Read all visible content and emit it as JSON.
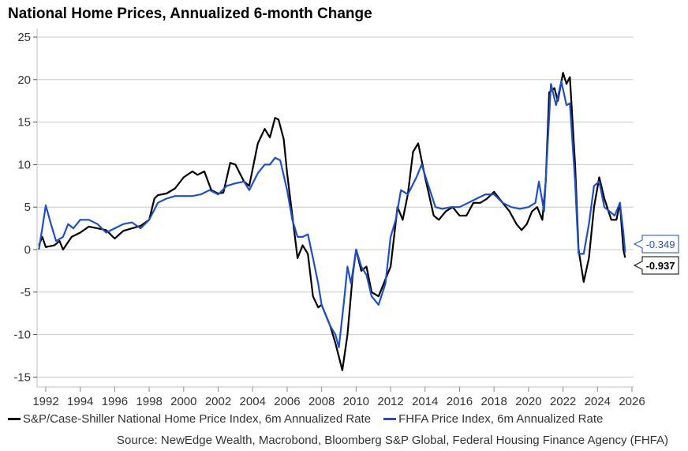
{
  "chart_data": {
    "type": "line",
    "title": "National Home Prices, Annualized 6-month Change",
    "xlabel": "",
    "ylabel": "",
    "xlim": [
      1991.6,
      2026.0
    ],
    "ylim": [
      -15,
      25
    ],
    "yticks": [
      25,
      20,
      15,
      10,
      5,
      0,
      -5,
      -10,
      -15
    ],
    "xticks": [
      1992,
      1994,
      1996,
      1998,
      2000,
      2002,
      2004,
      2006,
      2008,
      2010,
      2012,
      2014,
      2016,
      2018,
      2020,
      2022,
      2024,
      2026
    ],
    "grid": true,
    "legend_position": "bottom",
    "series": [
      {
        "name": "S&P/Case-Shiller National Home Price Index, 6m Annualized Rate",
        "color": "#000000",
        "last_value_label": "-0.937",
        "points": [
          [
            1991.6,
            0.5
          ],
          [
            1991.8,
            1.5
          ],
          [
            1992.0,
            0.3
          ],
          [
            1992.5,
            0.5
          ],
          [
            1992.8,
            1.0
          ],
          [
            1993.0,
            0.0
          ],
          [
            1993.5,
            1.5
          ],
          [
            1994.0,
            2.0
          ],
          [
            1994.5,
            2.7
          ],
          [
            1995.0,
            2.5
          ],
          [
            1995.5,
            2.3
          ],
          [
            1996.0,
            1.3
          ],
          [
            1996.5,
            2.2
          ],
          [
            1997.0,
            2.5
          ],
          [
            1997.5,
            2.8
          ],
          [
            1998.0,
            3.5
          ],
          [
            1998.3,
            6.0
          ],
          [
            1998.5,
            6.4
          ],
          [
            1999.0,
            6.6
          ],
          [
            1999.5,
            7.2
          ],
          [
            2000.0,
            8.5
          ],
          [
            2000.5,
            9.2
          ],
          [
            2000.8,
            8.8
          ],
          [
            2001.2,
            9.2
          ],
          [
            2001.6,
            7.0
          ],
          [
            2002.0,
            6.6
          ],
          [
            2002.3,
            6.7
          ],
          [
            2002.7,
            10.2
          ],
          [
            2003.0,
            10.0
          ],
          [
            2003.5,
            8.0
          ],
          [
            2003.8,
            7.5
          ],
          [
            2004.3,
            12.5
          ],
          [
            2004.7,
            14.2
          ],
          [
            2005.0,
            13.2
          ],
          [
            2005.3,
            15.5
          ],
          [
            2005.5,
            15.3
          ],
          [
            2005.8,
            13.0
          ],
          [
            2006.0,
            9.0
          ],
          [
            2006.3,
            4.0
          ],
          [
            2006.6,
            -1.0
          ],
          [
            2006.9,
            0.5
          ],
          [
            2007.2,
            -0.5
          ],
          [
            2007.5,
            -5.5
          ],
          [
            2007.8,
            -6.8
          ],
          [
            2008.0,
            -6.5
          ],
          [
            2008.5,
            -9.0
          ],
          [
            2008.8,
            -11.0
          ],
          [
            2009.2,
            -14.2
          ],
          [
            2009.5,
            -10.0
          ],
          [
            2009.8,
            -3.0
          ],
          [
            2010.0,
            0.0
          ],
          [
            2010.3,
            -2.5
          ],
          [
            2010.6,
            -2.0
          ],
          [
            2010.9,
            -5.0
          ],
          [
            2011.3,
            -5.5
          ],
          [
            2011.7,
            -3.5
          ],
          [
            2012.0,
            -2.0
          ],
          [
            2012.4,
            5.0
          ],
          [
            2012.7,
            3.5
          ],
          [
            2013.0,
            6.5
          ],
          [
            2013.3,
            11.5
          ],
          [
            2013.6,
            12.5
          ],
          [
            2014.0,
            8.5
          ],
          [
            2014.5,
            4.0
          ],
          [
            2014.8,
            3.5
          ],
          [
            2015.2,
            4.5
          ],
          [
            2015.6,
            5.0
          ],
          [
            2016.0,
            4.0
          ],
          [
            2016.4,
            4.0
          ],
          [
            2016.8,
            5.5
          ],
          [
            2017.2,
            5.5
          ],
          [
            2017.6,
            6.0
          ],
          [
            2018.0,
            6.8
          ],
          [
            2018.5,
            5.5
          ],
          [
            2018.9,
            4.5
          ],
          [
            2019.3,
            3.0
          ],
          [
            2019.6,
            2.3
          ],
          [
            2019.9,
            3.0
          ],
          [
            2020.2,
            4.5
          ],
          [
            2020.5,
            5.0
          ],
          [
            2020.8,
            3.5
          ],
          [
            2021.0,
            8.0
          ],
          [
            2021.2,
            18.5
          ],
          [
            2021.5,
            19.0
          ],
          [
            2021.7,
            17.5
          ],
          [
            2022.0,
            20.8
          ],
          [
            2022.2,
            19.5
          ],
          [
            2022.4,
            20.3
          ],
          [
            2022.7,
            10.0
          ],
          [
            2022.9,
            0.0
          ],
          [
            2023.2,
            -3.8
          ],
          [
            2023.5,
            -1.0
          ],
          [
            2023.8,
            5.0
          ],
          [
            2024.1,
            8.5
          ],
          [
            2024.4,
            6.0
          ],
          [
            2024.8,
            3.5
          ],
          [
            2025.1,
            3.5
          ],
          [
            2025.3,
            5.5
          ],
          [
            2025.5,
            0.0
          ],
          [
            2025.6,
            -0.937
          ]
        ]
      },
      {
        "name": "FHFA Price Index, 6m Annualized Rate",
        "color": "#1e4fc4",
        "last_value_label": "-0.349",
        "points": [
          [
            1991.6,
            0.0
          ],
          [
            1991.8,
            2.5
          ],
          [
            1992.0,
            5.2
          ],
          [
            1992.3,
            3.0
          ],
          [
            1992.6,
            1.0
          ],
          [
            1993.0,
            1.5
          ],
          [
            1993.3,
            3.0
          ],
          [
            1993.6,
            2.5
          ],
          [
            1994.0,
            3.5
          ],
          [
            1994.5,
            3.5
          ],
          [
            1995.0,
            3.0
          ],
          [
            1995.5,
            2.0
          ],
          [
            1996.0,
            2.5
          ],
          [
            1996.5,
            3.0
          ],
          [
            1997.0,
            3.2
          ],
          [
            1997.5,
            2.5
          ],
          [
            1998.0,
            3.5
          ],
          [
            1998.5,
            5.5
          ],
          [
            1999.0,
            6.0
          ],
          [
            1999.5,
            6.3
          ],
          [
            2000.0,
            6.3
          ],
          [
            2000.5,
            6.3
          ],
          [
            2001.0,
            6.5
          ],
          [
            2001.5,
            7.0
          ],
          [
            2002.0,
            6.5
          ],
          [
            2002.5,
            7.5
          ],
          [
            2003.0,
            7.8
          ],
          [
            2003.5,
            8.0
          ],
          [
            2003.8,
            7.0
          ],
          [
            2004.3,
            9.0
          ],
          [
            2004.7,
            10.0
          ],
          [
            2005.0,
            10.0
          ],
          [
            2005.3,
            10.8
          ],
          [
            2005.6,
            10.5
          ],
          [
            2006.0,
            7.0
          ],
          [
            2006.3,
            3.5
          ],
          [
            2006.6,
            1.5
          ],
          [
            2006.9,
            1.5
          ],
          [
            2007.2,
            1.8
          ],
          [
            2007.5,
            -1.0
          ],
          [
            2007.8,
            -4.0
          ],
          [
            2008.0,
            -6.5
          ],
          [
            2008.5,
            -9.0
          ],
          [
            2008.8,
            -10.0
          ],
          [
            2009.0,
            -11.5
          ],
          [
            2009.3,
            -6.0
          ],
          [
            2009.5,
            -2.0
          ],
          [
            2009.7,
            -4.0
          ],
          [
            2010.0,
            0.0
          ],
          [
            2010.3,
            -2.0
          ],
          [
            2010.6,
            -3.0
          ],
          [
            2010.9,
            -5.5
          ],
          [
            2011.3,
            -6.5
          ],
          [
            2011.7,
            -4.0
          ],
          [
            2012.0,
            1.5
          ],
          [
            2012.3,
            3.5
          ],
          [
            2012.6,
            7.0
          ],
          [
            2013.0,
            6.5
          ],
          [
            2013.5,
            8.5
          ],
          [
            2013.8,
            10.0
          ],
          [
            2014.2,
            7.5
          ],
          [
            2014.6,
            5.0
          ],
          [
            2015.0,
            4.8
          ],
          [
            2015.5,
            5.0
          ],
          [
            2016.0,
            5.0
          ],
          [
            2016.5,
            5.5
          ],
          [
            2017.0,
            6.0
          ],
          [
            2017.5,
            6.5
          ],
          [
            2018.0,
            6.5
          ],
          [
            2018.5,
            5.5
          ],
          [
            2019.0,
            5.0
          ],
          [
            2019.5,
            4.8
          ],
          [
            2020.0,
            5.0
          ],
          [
            2020.4,
            5.5
          ],
          [
            2020.6,
            8.0
          ],
          [
            2020.9,
            4.5
          ],
          [
            2021.1,
            12.0
          ],
          [
            2021.3,
            19.5
          ],
          [
            2021.6,
            17.0
          ],
          [
            2021.9,
            19.8
          ],
          [
            2022.2,
            17.0
          ],
          [
            2022.4,
            17.2
          ],
          [
            2022.7,
            8.0
          ],
          [
            2022.9,
            -0.5
          ],
          [
            2023.2,
            -0.5
          ],
          [
            2023.5,
            3.0
          ],
          [
            2023.8,
            7.5
          ],
          [
            2024.1,
            8.0
          ],
          [
            2024.4,
            5.0
          ],
          [
            2024.7,
            4.5
          ],
          [
            2025.0,
            4.0
          ],
          [
            2025.3,
            5.5
          ],
          [
            2025.5,
            2.0
          ],
          [
            2025.6,
            -0.349
          ]
        ]
      }
    ],
    "source": "Source: NewEdge Wealth, Macrobond, Bloomberg S&P Global, Federal Housing Finance Agency (FHFA)"
  }
}
